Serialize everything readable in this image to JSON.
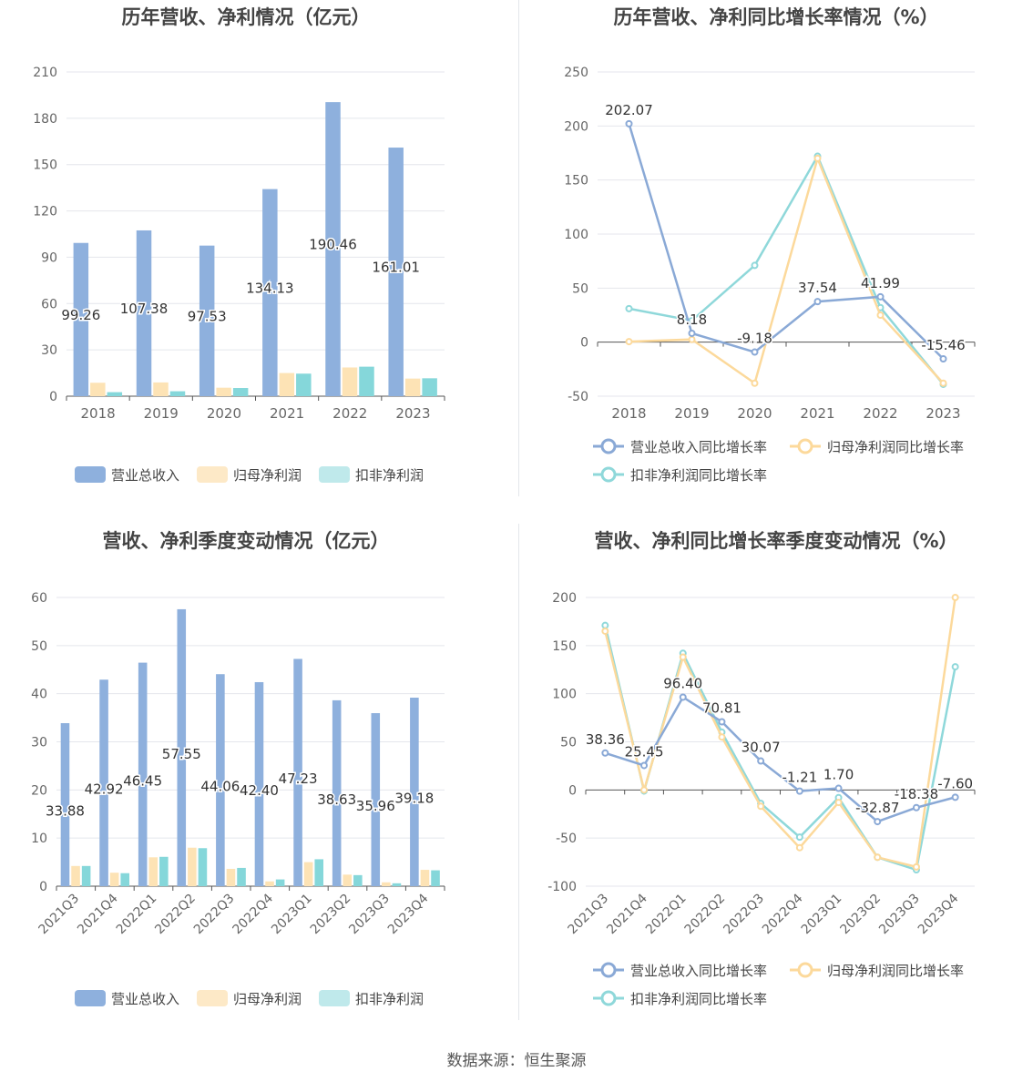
{
  "source": "数据来源：恒生聚源",
  "colors": {
    "revenue": "#8eb0dd",
    "net": "#fde3b5",
    "deducted": "#85d7da",
    "axis": "#333333",
    "grid": "#e4e6ec"
  },
  "charts": {
    "annual_bar": {
      "type": "bar",
      "title": "历年营收、净利情况（亿元）",
      "categories": [
        "2018",
        "2019",
        "2020",
        "2021",
        "2022",
        "2023"
      ],
      "ylim": [
        0,
        210
      ],
      "yticks": [
        "0",
        "30",
        "60",
        "90",
        "120",
        "150",
        "180",
        "210"
      ],
      "series": [
        {
          "name": "营业总收入",
          "values": [
            99.26,
            107.38,
            97.53,
            134.13,
            190.46,
            161.01
          ],
          "labels": [
            "99.26",
            "107.38",
            "97.53",
            "134.13",
            "190.46",
            "161.01"
          ]
        },
        {
          "name": "归母净利润",
          "values": [
            8.7,
            8.9,
            5.5,
            15.0,
            18.6,
            11.4
          ]
        },
        {
          "name": "扣非净利润",
          "values": [
            2.6,
            3.2,
            5.3,
            14.6,
            19.1,
            11.6
          ]
        }
      ],
      "legend": "bottom"
    },
    "annual_growth": {
      "type": "line",
      "title": "历年营收、净利同比增长率情况（%）",
      "categories": [
        "2018",
        "2019",
        "2020",
        "2021",
        "2022",
        "2023"
      ],
      "ylim": [
        -50,
        250
      ],
      "yticks": [
        "-50",
        "0",
        "50",
        "100",
        "150",
        "200",
        "250"
      ],
      "series": [
        {
          "name": "营业总收入同比增长率",
          "values": [
            202.07,
            8.18,
            -9.18,
            37.54,
            41.99,
            -15.46
          ],
          "labels": [
            "202.07",
            "8.18",
            "-9.18",
            "37.54",
            "41.99",
            "-15.46"
          ]
        },
        {
          "name": "归母净利润同比增长率",
          "values": [
            0.5,
            2.5,
            -38,
            170,
            25,
            -38
          ]
        },
        {
          "name": "扣非净利润同比增长率",
          "values": [
            31,
            20,
            71,
            172,
            32,
            -39
          ]
        }
      ],
      "legend": "bottom"
    },
    "quarter_bar": {
      "type": "bar",
      "title": "营收、净利季度变动情况（亿元）",
      "categories": [
        "2021Q3",
        "2021Q4",
        "2022Q1",
        "2022Q2",
        "2022Q3",
        "2022Q4",
        "2023Q1",
        "2023Q2",
        "2023Q3",
        "2023Q4"
      ],
      "ylim": [
        0,
        60
      ],
      "yticks": [
        "0",
        "10",
        "20",
        "30",
        "40",
        "50",
        "60"
      ],
      "series": [
        {
          "name": "营业总收入",
          "values": [
            33.88,
            42.92,
            46.45,
            57.55,
            44.06,
            42.4,
            47.23,
            38.63,
            35.96,
            39.18
          ],
          "labels": [
            "33.88",
            "42.92",
            "46.45",
            "57.55",
            "44.06",
            "42.40",
            "47.23",
            "38.63",
            "35.96",
            "39.18"
          ]
        },
        {
          "name": "归母净利润",
          "values": [
            4.2,
            2.8,
            6.0,
            8.0,
            3.6,
            1.0,
            5.0,
            2.4,
            0.8,
            3.4
          ]
        },
        {
          "name": "扣非净利润",
          "values": [
            4.2,
            2.7,
            6.1,
            7.9,
            3.8,
            1.4,
            5.6,
            2.3,
            0.6,
            3.3
          ]
        }
      ],
      "legend": "bottom"
    },
    "quarter_growth": {
      "type": "line",
      "title": "营收、净利同比增长率季度变动情况（%）",
      "categories": [
        "2021Q3",
        "2021Q4",
        "2022Q1",
        "2022Q2",
        "2022Q3",
        "2022Q4",
        "2023Q1",
        "2023Q2",
        "2023Q3",
        "2023Q4"
      ],
      "ylim": [
        -100,
        200
      ],
      "yticks": [
        "-100",
        "-50",
        "0",
        "50",
        "100",
        "150",
        "200"
      ],
      "series": [
        {
          "name": "营业总收入同比增长率",
          "values": [
            38.36,
            25.45,
            96.4,
            70.81,
            30.07,
            -1.21,
            1.7,
            -32.87,
            -18.38,
            -7.6
          ],
          "labels": [
            "38.36",
            "25.45",
            "96.40",
            "70.81",
            "30.07",
            "-1.21",
            "1.70",
            "-32.87",
            "-18.38",
            "-7.60"
          ]
        },
        {
          "name": "归母净利润同比增长率",
          "values": [
            165,
            0,
            138,
            55,
            -17,
            -60,
            -13,
            -70,
            -80,
            200
          ]
        },
        {
          "name": "扣非净利润同比增长率",
          "values": [
            171,
            -1,
            142,
            60,
            -14,
            -49,
            -8,
            -70,
            -83,
            128
          ]
        }
      ],
      "legend": "bottom"
    }
  }
}
